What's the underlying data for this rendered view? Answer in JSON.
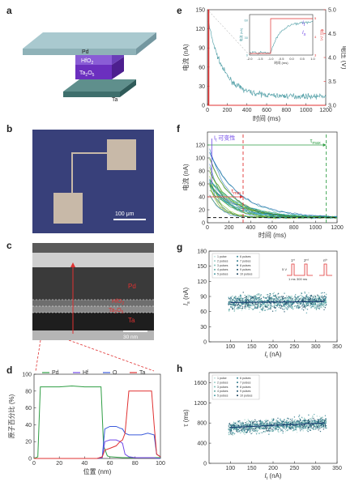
{
  "panels": {
    "a": "a",
    "b": "b",
    "c": "c",
    "d": "d",
    "e": "e",
    "f": "f",
    "g": "g",
    "h": "h"
  },
  "device": {
    "pd": "Pd",
    "hfo2": "HfO",
    "hfo2_sub": "2",
    "ta2o5": "Ta",
    "ta2o5_sub1": "2",
    "ta2o5_o": "O",
    "ta2o5_sub2": "5",
    "ta": "Ta"
  },
  "sem": {
    "scale": "100 μm"
  },
  "tem": {
    "pd": "Pd",
    "hfo2": "HfO",
    "hfo2_sub": "2",
    "ta2o5": "Ta",
    "ta2o5_sub1": "2",
    "ta2o5_o": "O",
    "ta2o5_sub2": "5",
    "ta": "Ta",
    "scale": "30 nm"
  },
  "colors": {
    "green": "#2f9e44",
    "red": "#e03131",
    "blue": "#3b5bdb",
    "teal": "#4a9ba3",
    "purple": "#7048e8"
  },
  "chart_data": [
    {
      "id": "d",
      "type": "line",
      "xlabel": "位置 (nm)",
      "ylabel": "原子百分比 (%)",
      "xlim": [
        0,
        100
      ],
      "ylim": [
        0,
        100
      ],
      "xticks": [
        "0",
        "20",
        "40",
        "60",
        "80",
        "100"
      ],
      "yticks": [
        "0",
        "20",
        "40",
        "60",
        "80",
        "100"
      ],
      "legend": [
        "Pd",
        "Hf",
        "O",
        "Ta"
      ],
      "series": [
        {
          "name": "Pd",
          "x": [
            0,
            3,
            5,
            10,
            20,
            30,
            40,
            50,
            53,
            55,
            58,
            60,
            70,
            75,
            80,
            85,
            90,
            95,
            100
          ],
          "values": [
            0,
            2,
            85,
            85,
            85,
            86,
            85,
            85,
            85,
            15,
            3,
            2,
            1,
            1,
            1,
            1,
            1,
            1,
            1
          ]
        },
        {
          "name": "Hf",
          "x": [
            0,
            50,
            54,
            56,
            60,
            65,
            68,
            70,
            72,
            75,
            80,
            90,
            95,
            97,
            100
          ],
          "values": [
            0,
            0,
            1,
            20,
            22,
            22,
            20,
            18,
            5,
            2,
            1,
            1,
            1,
            0,
            0
          ]
        },
        {
          "name": "O",
          "x": [
            0,
            50,
            54,
            56,
            60,
            65,
            68,
            70,
            72,
            75,
            80,
            85,
            90,
            95,
            97,
            100
          ],
          "values": [
            0,
            0,
            2,
            35,
            38,
            38,
            36,
            35,
            30,
            28,
            28,
            28,
            30,
            28,
            5,
            2
          ]
        },
        {
          "name": "Ta",
          "x": [
            0,
            50,
            54,
            56,
            60,
            65,
            68,
            70,
            72,
            75,
            80,
            85,
            90,
            93,
            95,
            97,
            100
          ],
          "values": [
            0,
            0,
            2,
            10,
            12,
            15,
            20,
            22,
            30,
            80,
            80,
            80,
            80,
            80,
            40,
            5,
            2
          ]
        }
      ]
    },
    {
      "id": "e",
      "type": "line",
      "xlabel": "时间 (ms)",
      "ylabel": "电流 (nA)",
      "y2label": "电压 (V)",
      "xlim": [
        -1,
        1200
      ],
      "ylim": [
        0,
        150
      ],
      "y2lim": [
        3,
        5
      ],
      "xticks": [
        "0",
        "200",
        "400",
        "600",
        "800",
        "1000",
        "1200"
      ],
      "yticks": [
        "0",
        "30",
        "60",
        "90",
        "120",
        "150"
      ],
      "y2ticks": [
        "3.0",
        "3.5",
        "4.0",
        "4.5",
        "5.0"
      ],
      "series": [
        {
          "name": "current",
          "x": [
            0,
            10,
            30,
            60,
            100,
            150,
            200,
            250,
            300,
            400,
            500,
            600,
            700,
            800,
            900,
            1000,
            1100,
            1200
          ],
          "values": [
            0,
            135,
            110,
            85,
            65,
            50,
            40,
            32,
            25,
            20,
            17,
            15,
            13,
            12,
            12,
            11,
            11,
            11
          ]
        },
        {
          "name": "voltage",
          "x": [
            0,
            1,
            2,
            1200
          ],
          "values": [
            3.0,
            5.0,
            5.0,
            5.0
          ]
        }
      ],
      "inset": {
        "xlabel": "时间 (ms)",
        "ylabel": "电流 (nA)",
        "y2label": "电压 (V)",
        "xticks": [
          "-2.0",
          "-1.5",
          "-1.0",
          "-0.5",
          "0.0",
          "0.5",
          "1.0"
        ],
        "yticks": [
          "0",
          "30",
          "60"
        ],
        "y2ticks": [
          "3",
          "4",
          "5"
        ],
        "labels": [
          "I",
          "I"
        ],
        "label_subs": [
          "t",
          "s"
        ]
      }
    },
    {
      "id": "f",
      "type": "line",
      "xlabel": "时间 (ms)",
      "ylabel": "电流 (nA)",
      "xlim": [
        0,
        1200
      ],
      "ylim": [
        0,
        140
      ],
      "xticks": [
        "0",
        "200",
        "400",
        "600",
        "800",
        "1000",
        "1200"
      ],
      "yticks": [
        "0",
        "20",
        "40",
        "60",
        "80",
        "100",
        "120"
      ],
      "annotations": {
        "variability": "I",
        "variability_sub": "t",
        "variability_tail": " 可变性",
        "tau_min": "τ",
        "tau_min_sub": "min",
        "tau_max": "τ",
        "tau_max_sub": "max"
      },
      "tau_min_x": 330,
      "tau_max_x": 1100,
      "baseline": 8
    },
    {
      "id": "g",
      "type": "scatter",
      "xlabel": "I",
      "xlabel_sub": "t",
      "xlabel_tail": " (nA)",
      "ylabel": "I",
      "ylabel_sub": "s",
      "ylabel_tail": " (nA)",
      "xlim": [
        50,
        350
      ],
      "ylim": [
        0,
        180
      ],
      "xticks": [
        "100",
        "150",
        "200",
        "250",
        "300",
        "350"
      ],
      "yticks": [
        "0",
        "30",
        "60",
        "90",
        "120",
        "150",
        "180"
      ],
      "legend": [
        "1 pulse",
        "2 pulses",
        "3 pulses",
        "4 pulses",
        "5 pulses",
        "6 pulses",
        "7 pulses",
        "8 pulses",
        "9 pulses",
        "10 pulses"
      ],
      "fit": {
        "x": [
          100,
          320
        ],
        "values": [
          78,
          80
        ]
      },
      "pulse_labels": {
        "v": "5 V",
        "t": "1 ms",
        "t2": "300 ms",
        "n1": "1",
        "n2": "2",
        "nn": "n",
        "sup": "st",
        "sup2": "nd",
        "supn": "th"
      }
    },
    {
      "id": "h",
      "type": "scatter",
      "xlabel": "I",
      "xlabel_sub": "t",
      "xlabel_tail": " (nA)",
      "ylabel": "τ (ms)",
      "xlim": [
        50,
        350
      ],
      "ylim": [
        0,
        1800
      ],
      "xticks": [
        "100",
        "150",
        "200",
        "250",
        "300",
        "350"
      ],
      "yticks": [
        "0",
        "400",
        "800",
        "1200",
        "1600"
      ],
      "legend": [
        "1 pulse",
        "2 pulses",
        "3 pulses",
        "4 pulses",
        "5 pulses",
        "6 pulses",
        "7 pulses",
        "8 pulses",
        "9 pulses",
        "10 pulses"
      ],
      "fit": {
        "x": [
          100,
          320
        ],
        "values": [
          710,
          800
        ]
      }
    }
  ]
}
